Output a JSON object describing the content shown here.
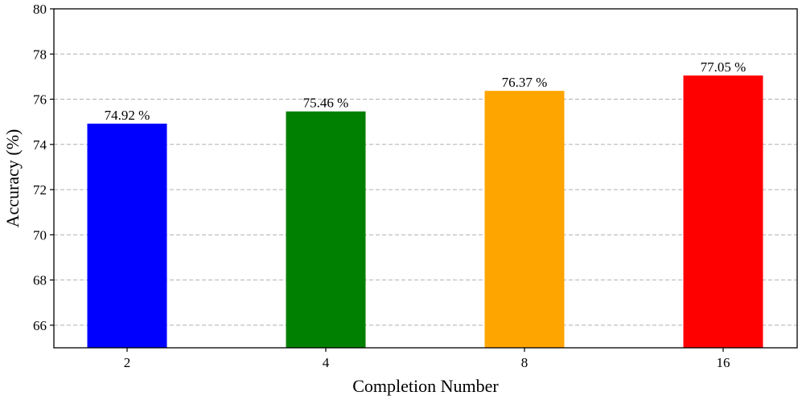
{
  "chart_data": {
    "type": "bar",
    "title": "",
    "xlabel": "Completion Number",
    "ylabel": "Accuracy (%)",
    "categories": [
      "2",
      "4",
      "8",
      "16"
    ],
    "values": [
      74.92,
      75.46,
      76.37,
      77.05
    ],
    "value_labels": [
      "74.92 %",
      "75.46 %",
      "76.37 %",
      "77.05 %"
    ],
    "colors": [
      "#0000ff",
      "#008000",
      "#ffa500",
      "#ff0000"
    ],
    "ylim": [
      65,
      80
    ],
    "yticks": [
      66,
      68,
      70,
      72,
      74,
      76,
      78,
      80
    ],
    "grid": {
      "axis": "y",
      "style": "dashed",
      "color": "#b0b0b0"
    },
    "legend": null
  }
}
